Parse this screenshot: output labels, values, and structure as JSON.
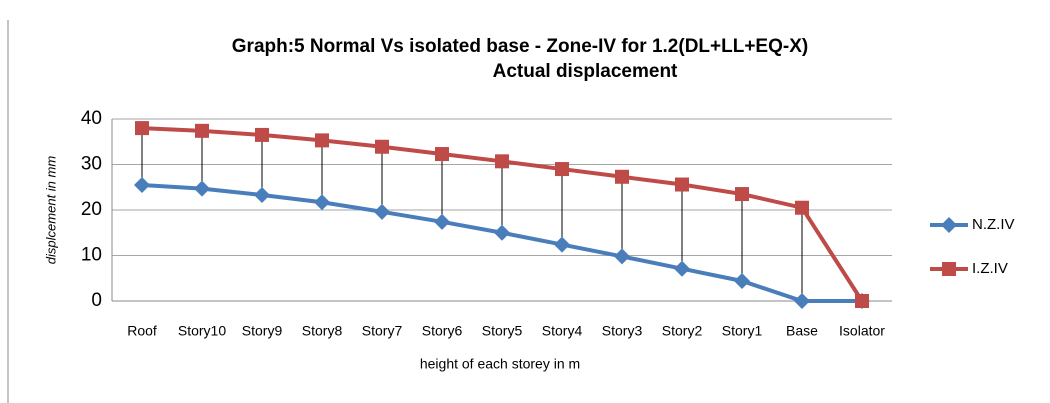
{
  "chart_data": {
    "type": "line",
    "title": "Graph:5 Normal Vs isolated base - Zone-IV for 1.2(DL+LL+EQ-X)",
    "subtitle": "Actual displacement",
    "y_label": "displcement   in mm",
    "x_label": "height of each storey in m",
    "categories": [
      "Roof",
      "Story10",
      "Story9",
      "Story8",
      "Story7",
      "Story6",
      "Story5",
      "Story4",
      "Story3",
      "Story2",
      "Story1",
      "Base",
      "Isolator"
    ],
    "series": [
      {
        "name": "N.Z.IV",
        "color": "#4a7ebb",
        "marker": "diamond",
        "values": [
          25.5,
          24.7,
          23.3,
          21.7,
          19.6,
          17.4,
          15,
          12.4,
          9.8,
          7.1,
          4.4,
          0,
          0
        ]
      },
      {
        "name": "I.Z.IV",
        "color": "#be4b48",
        "marker": "square",
        "values": [
          38,
          37.4,
          36.5,
          35.3,
          33.9,
          32.3,
          30.7,
          29,
          27.3,
          25.6,
          23.5,
          20.5,
          0
        ]
      }
    ],
    "ylim": [
      0,
      40
    ],
    "yticks": [
      0,
      10,
      20,
      30,
      40
    ],
    "grid": true,
    "legend": "right",
    "drop_lines": true
  }
}
